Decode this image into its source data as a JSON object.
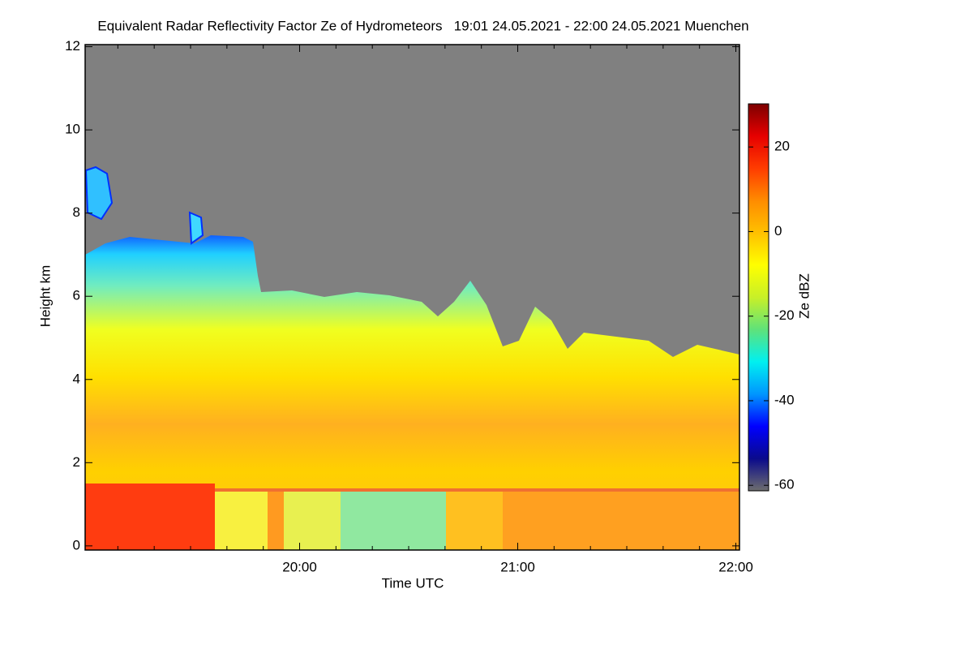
{
  "chart_data": {
    "type": "heatmap",
    "title": "Equivalent Radar Reflectivity Factor Ze of Hydrometeors   19:01 24.05.2021 - 22:00 24.05.2021 Muenchen",
    "x_label": "Time UTC",
    "y_label": "Height km",
    "colorbar_label": "Ze dBZ",
    "xlim": [
      1141,
      1321
    ],
    "xticks": [
      {
        "value": 1200,
        "label": "20:00"
      },
      {
        "value": 1260,
        "label": "21:00"
      },
      {
        "value": 1320,
        "label": "22:00"
      }
    ],
    "xminor_ticks": [
      1150,
      1160,
      1170,
      1180,
      1190,
      1210,
      1220,
      1230,
      1240,
      1250,
      1270,
      1280,
      1290,
      1300,
      1310
    ],
    "ylim": [
      -0.1,
      12.05
    ],
    "yticks": [
      0,
      2,
      4,
      6,
      8,
      10,
      12
    ],
    "clim": [
      -61.3,
      30.2
    ],
    "cticks": [
      -60,
      -40,
      -20,
      0,
      20
    ],
    "colormap": [
      "#6e6e6e",
      "#0a0a8c",
      "#0000ff",
      "#0096ff",
      "#00f0f0",
      "#5fe27a",
      "#c8f028",
      "#ffff00",
      "#ffc000",
      "#ff8c00",
      "#ff3c00",
      "#e60000",
      "#7d0000"
    ],
    "missing_color": "#808080"
  }
}
